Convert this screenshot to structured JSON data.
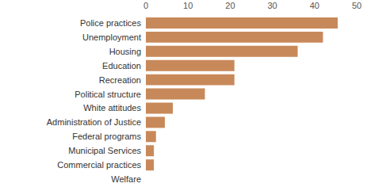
{
  "chart_data": {
    "type": "bar",
    "orientation": "horizontal",
    "categories": [
      "Police practices",
      "Unemployment",
      "Housing",
      "Education",
      "Recreation",
      "Political structure",
      "White attitudes",
      "Administration of Justice",
      "Federal programs",
      "Municipal Services",
      "Commercial practices",
      "Welfare"
    ],
    "values": [
      45.5,
      42,
      36,
      21,
      21,
      14,
      6.4,
      4.5,
      2.4,
      1.9,
      1.9,
      0
    ],
    "color": "#c8895a",
    "xlim": [
      0,
      50
    ],
    "xticks": [
      0,
      10,
      20,
      30,
      40,
      50
    ],
    "grid": false
  }
}
